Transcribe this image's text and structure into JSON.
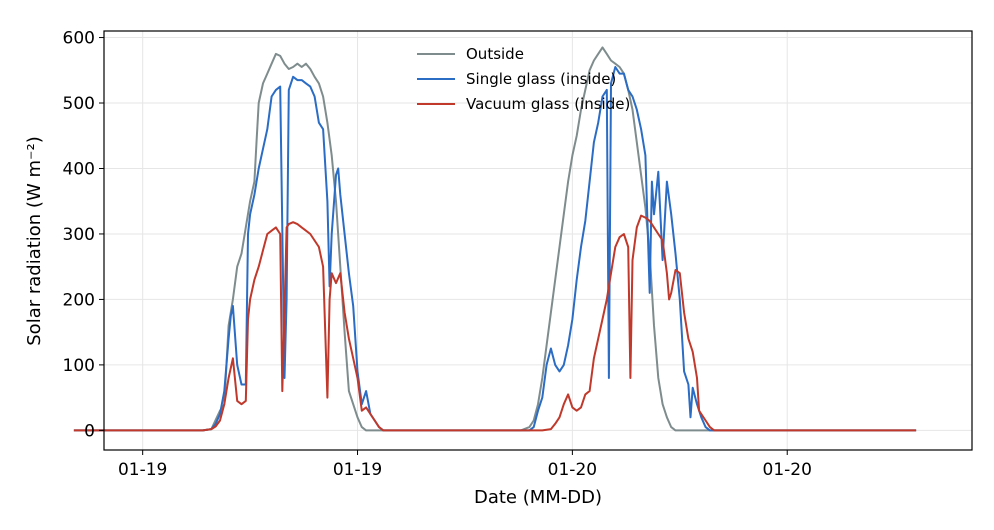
{
  "chart_data": {
    "type": "line",
    "xlabel": "Date (MM-DD)",
    "ylabel": "Solar radiation (W m⁻²)",
    "xlim": [
      -0.09,
      1.93
    ],
    "ylim": [
      -30,
      610
    ],
    "yticks": [
      0,
      100,
      200,
      300,
      400,
      500,
      600
    ],
    "xticks": [
      {
        "value": 0.0,
        "label": "01-19"
      },
      {
        "value": 0.5,
        "label": "01-19"
      },
      {
        "value": 1.0,
        "label": "01-20"
      },
      {
        "value": 1.5,
        "label": "01-20"
      }
    ],
    "grid": true,
    "legend_position": "top-center",
    "series": [
      {
        "name": "Outside",
        "color": "#7f8c8d",
        "points": [
          [
            -0.16,
            0
          ],
          [
            0.14,
            0
          ],
          [
            0.16,
            2
          ],
          [
            0.18,
            30
          ],
          [
            0.19,
            40
          ],
          [
            0.2,
            160
          ],
          [
            0.21,
            200
          ],
          [
            0.22,
            250
          ],
          [
            0.23,
            270
          ],
          [
            0.24,
            310
          ],
          [
            0.25,
            350
          ],
          [
            0.26,
            380
          ],
          [
            0.265,
            440
          ],
          [
            0.27,
            500
          ],
          [
            0.28,
            530
          ],
          [
            0.29,
            545
          ],
          [
            0.3,
            560
          ],
          [
            0.31,
            575
          ],
          [
            0.32,
            572
          ],
          [
            0.33,
            560
          ],
          [
            0.34,
            552
          ],
          [
            0.35,
            555
          ],
          [
            0.36,
            560
          ],
          [
            0.37,
            555
          ],
          [
            0.38,
            560
          ],
          [
            0.39,
            552
          ],
          [
            0.4,
            540
          ],
          [
            0.41,
            530
          ],
          [
            0.42,
            510
          ],
          [
            0.43,
            470
          ],
          [
            0.44,
            420
          ],
          [
            0.45,
            350
          ],
          [
            0.46,
            250
          ],
          [
            0.47,
            150
          ],
          [
            0.48,
            60
          ],
          [
            0.49,
            40
          ],
          [
            0.5,
            20
          ],
          [
            0.51,
            5
          ],
          [
            0.52,
            0
          ],
          [
            0.88,
            0
          ],
          [
            0.9,
            5
          ],
          [
            0.91,
            15
          ],
          [
            0.92,
            40
          ],
          [
            0.93,
            80
          ],
          [
            0.94,
            130
          ],
          [
            0.95,
            180
          ],
          [
            0.96,
            230
          ],
          [
            0.97,
            280
          ],
          [
            0.98,
            330
          ],
          [
            0.99,
            380
          ],
          [
            1.0,
            420
          ],
          [
            1.01,
            450
          ],
          [
            1.02,
            490
          ],
          [
            1.03,
            520
          ],
          [
            1.04,
            550
          ],
          [
            1.05,
            565
          ],
          [
            1.06,
            575
          ],
          [
            1.07,
            585
          ],
          [
            1.08,
            575
          ],
          [
            1.09,
            565
          ],
          [
            1.1,
            560
          ],
          [
            1.11,
            555
          ],
          [
            1.12,
            545
          ],
          [
            1.13,
            520
          ],
          [
            1.14,
            490
          ],
          [
            1.15,
            440
          ],
          [
            1.16,
            390
          ],
          [
            1.17,
            340
          ],
          [
            1.18,
            270
          ],
          [
            1.19,
            160
          ],
          [
            1.2,
            80
          ],
          [
            1.21,
            40
          ],
          [
            1.22,
            20
          ],
          [
            1.23,
            5
          ],
          [
            1.24,
            0
          ],
          [
            1.8,
            0
          ]
        ]
      },
      {
        "name": "Single glass (inside)",
        "color": "#2b6cc4",
        "points": [
          [
            -0.16,
            0
          ],
          [
            0.14,
            0
          ],
          [
            0.16,
            2
          ],
          [
            0.17,
            10
          ],
          [
            0.18,
            25
          ],
          [
            0.19,
            60
          ],
          [
            0.2,
            140
          ],
          [
            0.205,
            175
          ],
          [
            0.21,
            190
          ],
          [
            0.22,
            100
          ],
          [
            0.23,
            70
          ],
          [
            0.24,
            70
          ],
          [
            0.245,
            300
          ],
          [
            0.25,
            330
          ],
          [
            0.26,
            360
          ],
          [
            0.27,
            400
          ],
          [
            0.28,
            430
          ],
          [
            0.29,
            460
          ],
          [
            0.3,
            510
          ],
          [
            0.31,
            520
          ],
          [
            0.32,
            525
          ],
          [
            0.33,
            80
          ],
          [
            0.335,
            200
          ],
          [
            0.34,
            520
          ],
          [
            0.35,
            540
          ],
          [
            0.36,
            535
          ],
          [
            0.37,
            535
          ],
          [
            0.38,
            530
          ],
          [
            0.39,
            525
          ],
          [
            0.4,
            510
          ],
          [
            0.41,
            470
          ],
          [
            0.42,
            460
          ],
          [
            0.43,
            350
          ],
          [
            0.435,
            220
          ],
          [
            0.44,
            300
          ],
          [
            0.45,
            390
          ],
          [
            0.455,
            400
          ],
          [
            0.46,
            360
          ],
          [
            0.47,
            300
          ],
          [
            0.48,
            240
          ],
          [
            0.49,
            190
          ],
          [
            0.5,
            90
          ],
          [
            0.51,
            40
          ],
          [
            0.52,
            60
          ],
          [
            0.53,
            25
          ],
          [
            0.54,
            15
          ],
          [
            0.55,
            5
          ],
          [
            0.56,
            0
          ],
          [
            0.9,
            0
          ],
          [
            0.91,
            5
          ],
          [
            0.92,
            30
          ],
          [
            0.93,
            50
          ],
          [
            0.94,
            100
          ],
          [
            0.95,
            125
          ],
          [
            0.96,
            100
          ],
          [
            0.97,
            90
          ],
          [
            0.98,
            100
          ],
          [
            0.99,
            130
          ],
          [
            1.0,
            170
          ],
          [
            1.01,
            230
          ],
          [
            1.02,
            280
          ],
          [
            1.03,
            320
          ],
          [
            1.04,
            380
          ],
          [
            1.05,
            440
          ],
          [
            1.06,
            470
          ],
          [
            1.07,
            510
          ],
          [
            1.08,
            520
          ],
          [
            1.085,
            80
          ],
          [
            1.09,
            530
          ],
          [
            1.1,
            555
          ],
          [
            1.11,
            545
          ],
          [
            1.12,
            545
          ],
          [
            1.13,
            520
          ],
          [
            1.14,
            510
          ],
          [
            1.15,
            490
          ],
          [
            1.16,
            460
          ],
          [
            1.17,
            420
          ],
          [
            1.18,
            210
          ],
          [
            1.185,
            380
          ],
          [
            1.19,
            330
          ],
          [
            1.2,
            395
          ],
          [
            1.21,
            260
          ],
          [
            1.22,
            380
          ],
          [
            1.23,
            330
          ],
          [
            1.24,
            270
          ],
          [
            1.25,
            200
          ],
          [
            1.26,
            90
          ],
          [
            1.27,
            70
          ],
          [
            1.275,
            20
          ],
          [
            1.28,
            65
          ],
          [
            1.29,
            40
          ],
          [
            1.3,
            20
          ],
          [
            1.31,
            5
          ],
          [
            1.32,
            0
          ],
          [
            1.8,
            0
          ]
        ]
      },
      {
        "name": "Vacuum glass (inside)",
        "color": "#c0392b",
        "points": [
          [
            -0.16,
            0
          ],
          [
            0.14,
            0
          ],
          [
            0.16,
            2
          ],
          [
            0.17,
            6
          ],
          [
            0.18,
            15
          ],
          [
            0.19,
            40
          ],
          [
            0.2,
            80
          ],
          [
            0.21,
            110
          ],
          [
            0.22,
            45
          ],
          [
            0.23,
            40
          ],
          [
            0.24,
            45
          ],
          [
            0.245,
            170
          ],
          [
            0.25,
            200
          ],
          [
            0.26,
            230
          ],
          [
            0.27,
            250
          ],
          [
            0.28,
            275
          ],
          [
            0.29,
            300
          ],
          [
            0.3,
            305
          ],
          [
            0.31,
            310
          ],
          [
            0.32,
            300
          ],
          [
            0.325,
            60
          ],
          [
            0.33,
            180
          ],
          [
            0.335,
            310
          ],
          [
            0.34,
            315
          ],
          [
            0.35,
            318
          ],
          [
            0.36,
            315
          ],
          [
            0.37,
            310
          ],
          [
            0.38,
            305
          ],
          [
            0.39,
            300
          ],
          [
            0.4,
            290
          ],
          [
            0.41,
            280
          ],
          [
            0.42,
            250
          ],
          [
            0.43,
            50
          ],
          [
            0.435,
            200
          ],
          [
            0.44,
            240
          ],
          [
            0.45,
            225
          ],
          [
            0.46,
            240
          ],
          [
            0.47,
            180
          ],
          [
            0.48,
            140
          ],
          [
            0.49,
            110
          ],
          [
            0.5,
            80
          ],
          [
            0.51,
            30
          ],
          [
            0.52,
            35
          ],
          [
            0.53,
            25
          ],
          [
            0.54,
            15
          ],
          [
            0.55,
            5
          ],
          [
            0.56,
            0
          ],
          [
            0.93,
            0
          ],
          [
            0.95,
            2
          ],
          [
            0.96,
            10
          ],
          [
            0.97,
            20
          ],
          [
            0.98,
            40
          ],
          [
            0.99,
            55
          ],
          [
            1.0,
            35
          ],
          [
            1.01,
            30
          ],
          [
            1.02,
            35
          ],
          [
            1.03,
            55
          ],
          [
            1.04,
            60
          ],
          [
            1.05,
            110
          ],
          [
            1.06,
            140
          ],
          [
            1.07,
            170
          ],
          [
            1.08,
            200
          ],
          [
            1.09,
            240
          ],
          [
            1.1,
            280
          ],
          [
            1.11,
            295
          ],
          [
            1.12,
            300
          ],
          [
            1.13,
            280
          ],
          [
            1.135,
            80
          ],
          [
            1.14,
            260
          ],
          [
            1.15,
            310
          ],
          [
            1.16,
            328
          ],
          [
            1.17,
            325
          ],
          [
            1.18,
            320
          ],
          [
            1.19,
            310
          ],
          [
            1.2,
            300
          ],
          [
            1.21,
            290
          ],
          [
            1.22,
            240
          ],
          [
            1.225,
            200
          ],
          [
            1.23,
            210
          ],
          [
            1.24,
            245
          ],
          [
            1.25,
            240
          ],
          [
            1.26,
            180
          ],
          [
            1.27,
            140
          ],
          [
            1.28,
            120
          ],
          [
            1.29,
            80
          ],
          [
            1.295,
            30
          ],
          [
            1.3,
            25
          ],
          [
            1.31,
            15
          ],
          [
            1.32,
            5
          ],
          [
            1.33,
            0
          ],
          [
            1.8,
            0
          ]
        ]
      }
    ]
  }
}
